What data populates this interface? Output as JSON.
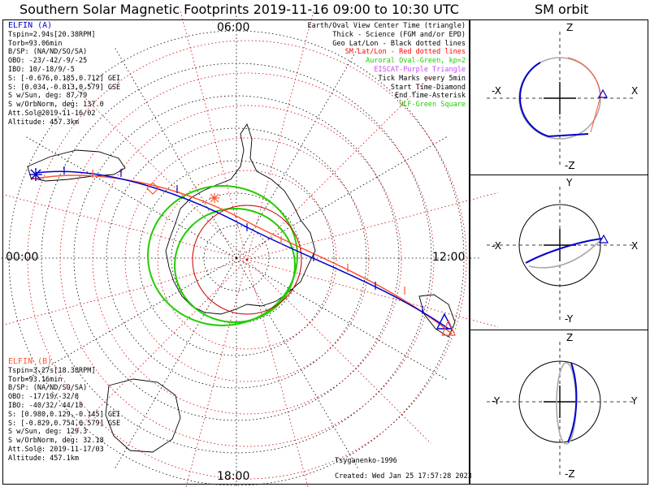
{
  "title": "Southern Solar Magnetic Footprints 2019-11-16 09:00 to 10:30 UTC",
  "orbit_title": "SM orbit",
  "colors": {
    "elfin_a": "#0000cc",
    "elfin_b": "#ff5533",
    "oval": "#22cc00",
    "sm_grid": "#cc0000",
    "eiscat": "#cc44ff"
  },
  "hour_labels": {
    "top": "06:00",
    "left": "00:00",
    "right": "12:00",
    "bottom": "18:00"
  },
  "elfin_a": {
    "name": "ELFIN (A)",
    "lines": [
      "Tspin=2.94s[20.38RPM]",
      "Torb=93.06min",
      "B/SP: (NA/ND/SO/SA)",
      "OBO: -23/-42/-9/-25",
      "IBO: 10/-18/9/-5",
      "S: [-0.676,0.185,0.712] GEI",
      "S: [0.034,-0.813,0.579] GSE",
      "S w/Sun, deg: 87.79",
      "S w/OrbNorm, deg: 137.0",
      "Att.Sol@2019-11-16/02",
      "Altitude: 457.3km"
    ]
  },
  "elfin_b": {
    "name": "ELFIN (B)",
    "lines": [
      "Tspin=3.27s[18.38RPM]",
      "Torb=93.16min",
      "B/SP: (NA/ND/SO/SA)",
      "OBO: -17/19/-32/8",
      "IBO: -40/32/-44/18",
      "S: [0.980,0.129,-0.145] GEI",
      "S: [-0.829,0.754,0.579] GSE",
      "S w/Sun, deg: 129.3",
      "S w/OrbNorm, deg: 32.18",
      "Att.Sol@: 2019-11-17/03",
      "Altitude: 457.1km"
    ]
  },
  "legend": [
    {
      "text": "Earth/Oval View Center Time (triangle)",
      "color": "#000000"
    },
    {
      "text": "Thick - Science (FGM and/or EPD)",
      "color": "#000000"
    },
    {
      "text": "Geo Lat/Lon - Black dotted lines",
      "color": "#000000"
    },
    {
      "text": "SM Lat/Lon - Red dotted lines",
      "color": "#ff0000"
    },
    {
      "text": "Auroral Oval-Green, kp=2",
      "color": "#22cc00"
    },
    {
      "text": "EISCAT-Purple Triangle",
      "color": "#cc44ff"
    },
    {
      "text": "Tick Marks every 5min",
      "color": "#000000"
    },
    {
      "text": "Start Time-Diamond",
      "color": "#000000"
    },
    {
      "text": "End Time-Asterisk",
      "color": "#000000"
    },
    {
      "text": "VLF-Green Square",
      "color": "#22cc00"
    }
  ],
  "credits": {
    "model": "Tsyganenko-1996",
    "created": "Created: Wed Jan 25 17:57:28 2023"
  },
  "panels": [
    {
      "top": "Z",
      "bottom": "-Z",
      "left": "-X",
      "right": "X"
    },
    {
      "top": "Y",
      "bottom": "-Y",
      "left": "-X",
      "right": "X"
    },
    {
      "top": "Z",
      "bottom": "-Z",
      "left": "-Y",
      "right": "Y"
    }
  ]
}
